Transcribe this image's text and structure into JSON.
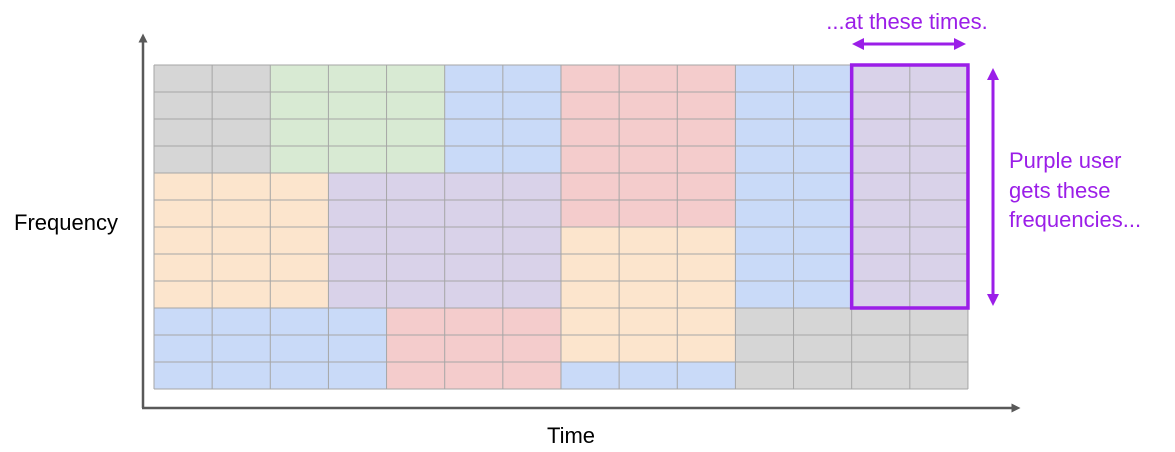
{
  "axes": {
    "y_label": "Frequency",
    "x_label": "Time"
  },
  "annotations": {
    "top": "...at these times.",
    "right_lines": [
      "Purple user",
      "gets these",
      "frequencies..."
    ]
  },
  "colors": {
    "gray": "#d6d6d6",
    "green": "#d8ead3",
    "blue": "#c9daf8",
    "red": "#f4cccc",
    "orange": "#fce5cd",
    "purple": "#d9d2e9",
    "grid_line": "#a6a6a6",
    "axis": "#595959",
    "highlight": "#9b1ee8"
  },
  "grid": {
    "columns": 14,
    "rows": 12,
    "cells": [
      [
        "gray",
        "gray",
        "green",
        "green",
        "green",
        "blue",
        "blue",
        "red",
        "red",
        "red",
        "blue",
        "blue",
        "purple",
        "purple"
      ],
      [
        "gray",
        "gray",
        "green",
        "green",
        "green",
        "blue",
        "blue",
        "red",
        "red",
        "red",
        "blue",
        "blue",
        "purple",
        "purple"
      ],
      [
        "gray",
        "gray",
        "green",
        "green",
        "green",
        "blue",
        "blue",
        "red",
        "red",
        "red",
        "blue",
        "blue",
        "purple",
        "purple"
      ],
      [
        "gray",
        "gray",
        "green",
        "green",
        "green",
        "blue",
        "blue",
        "red",
        "red",
        "red",
        "blue",
        "blue",
        "purple",
        "purple"
      ],
      [
        "orange",
        "orange",
        "orange",
        "purple",
        "purple",
        "purple",
        "purple",
        "red",
        "red",
        "red",
        "blue",
        "blue",
        "purple",
        "purple"
      ],
      [
        "orange",
        "orange",
        "orange",
        "purple",
        "purple",
        "purple",
        "purple",
        "red",
        "red",
        "red",
        "blue",
        "blue",
        "purple",
        "purple"
      ],
      [
        "orange",
        "orange",
        "orange",
        "purple",
        "purple",
        "purple",
        "purple",
        "orange",
        "orange",
        "orange",
        "blue",
        "blue",
        "purple",
        "purple"
      ],
      [
        "orange",
        "orange",
        "orange",
        "purple",
        "purple",
        "purple",
        "purple",
        "orange",
        "orange",
        "orange",
        "blue",
        "blue",
        "purple",
        "purple"
      ],
      [
        "orange",
        "orange",
        "orange",
        "purple",
        "purple",
        "purple",
        "purple",
        "orange",
        "orange",
        "orange",
        "blue",
        "blue",
        "purple",
        "purple"
      ],
      [
        "blue",
        "blue",
        "blue",
        "blue",
        "red",
        "red",
        "red",
        "orange",
        "orange",
        "orange",
        "gray",
        "gray",
        "gray",
        "gray"
      ],
      [
        "blue",
        "blue",
        "blue",
        "blue",
        "red",
        "red",
        "red",
        "orange",
        "orange",
        "orange",
        "gray",
        "gray",
        "gray",
        "gray"
      ],
      [
        "blue",
        "blue",
        "blue",
        "blue",
        "red",
        "red",
        "red",
        "blue",
        "blue",
        "blue",
        "gray",
        "gray",
        "gray",
        "gray"
      ]
    ],
    "highlight": {
      "col_start": 12,
      "col_end": 13,
      "row_start": 0,
      "row_end": 8
    }
  }
}
